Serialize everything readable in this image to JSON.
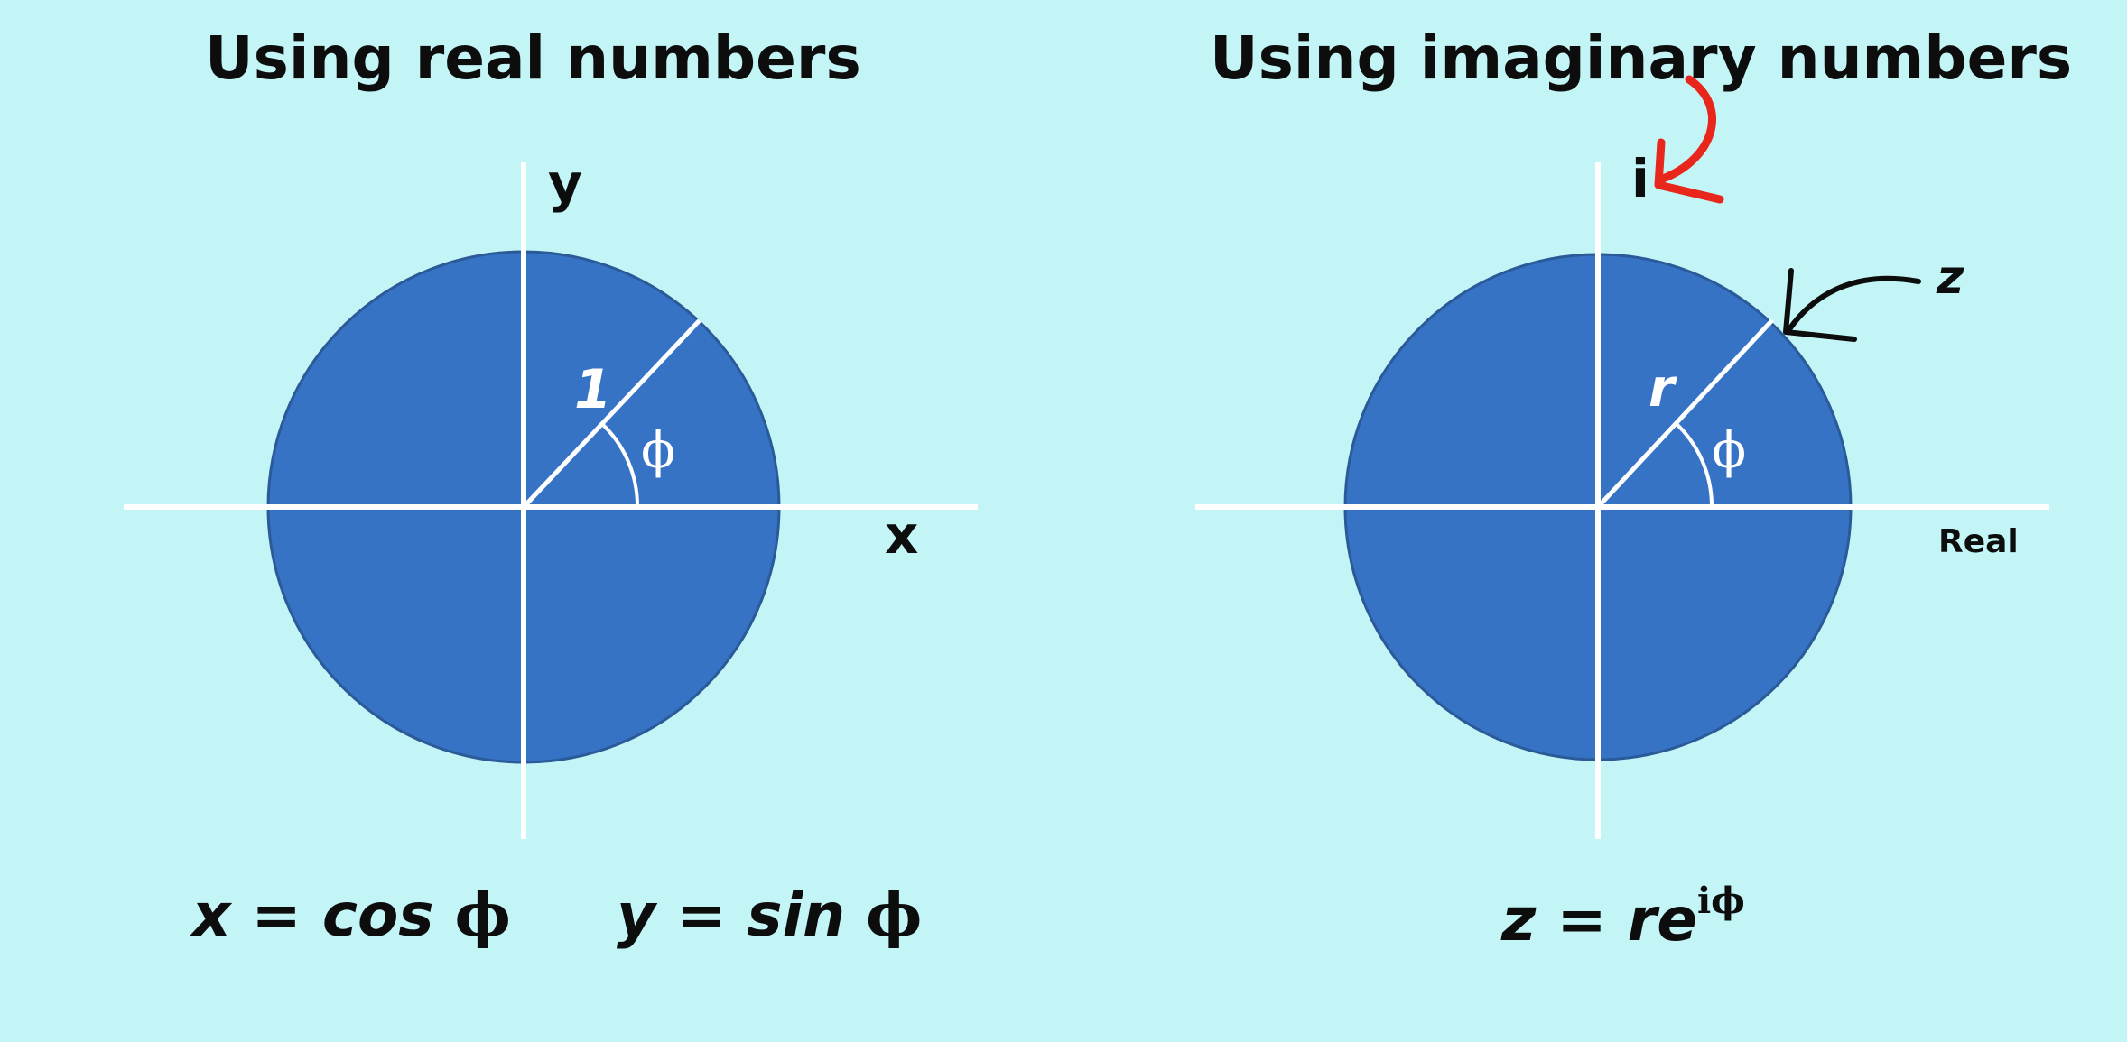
{
  "left_panel": {
    "title": "Using real numbers",
    "y_axis_label": "y",
    "x_axis_label": "x",
    "radius_label": "1",
    "angle_label": "ϕ",
    "equation_x": "x = cos ",
    "equation_x_symbol": "ϕ",
    "equation_y": "y = sin ",
    "equation_y_symbol": "ϕ"
  },
  "right_panel": {
    "title": "Using imaginary numbers",
    "imaginary_axis_label": "i",
    "real_axis_label": "Real",
    "point_label": "z",
    "radius_label": "r",
    "angle_label": "ϕ",
    "equation_prefix": "z = re",
    "equation_superscript": "iϕ"
  },
  "colors": {
    "background": "#c3f5f7",
    "disk_fill": "#3673c4",
    "disk_stroke": "#2b5a98",
    "axis": "#ffffff",
    "highlight_arrow": "#e8261c",
    "pointer_arrow": "#0d0d0d"
  }
}
